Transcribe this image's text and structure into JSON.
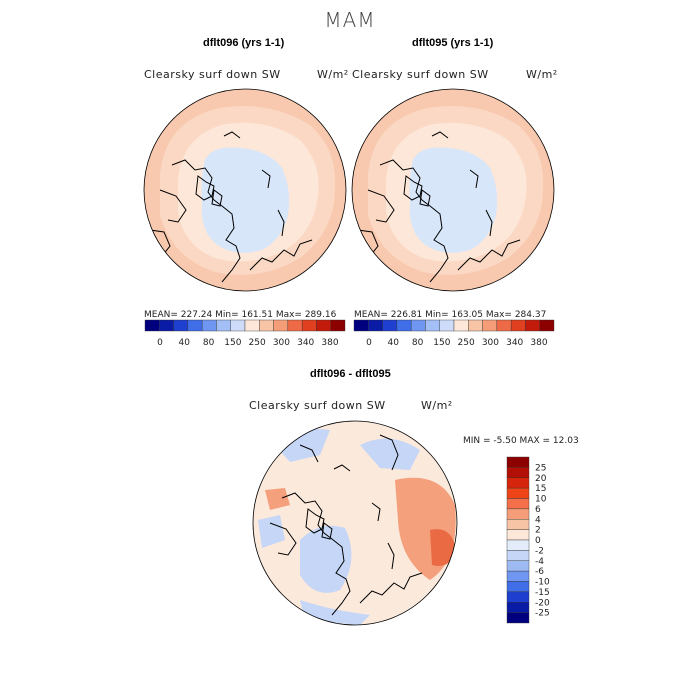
{
  "season": "MAM",
  "panels": [
    {
      "title": "dflt096 (yrs 1-1)",
      "field": "Clearsky surf down SW",
      "units": "W/m²",
      "stats": "MEAN= 227.24   Min= 161.51   Max= 289.16"
    },
    {
      "title": "dflt095 (yrs 1-1)",
      "field": "Clearsky surf down SW",
      "units": "W/m²",
      "stats": "MEAN= 226.81   Min= 163.05   Max= 284.37"
    }
  ],
  "diff": {
    "title": "dflt096 - dflt095",
    "field": "Clearsky surf down SW",
    "units": "W/m²",
    "stats": "MIN =   -5.50 MAX =   12.03"
  },
  "colorbar_top": {
    "labels": [
      "0",
      "40",
      "80",
      "150",
      "250",
      "300",
      "340",
      "380"
    ],
    "colors": [
      "#00007f",
      "#0a1ca6",
      "#1e3fd0",
      "#3f6ee8",
      "#6f97f2",
      "#a3bff6",
      "#cfdcf9",
      "#fde7d8",
      "#f7c4a6",
      "#f59d78",
      "#ee6a47",
      "#e0401f",
      "#c21b0c",
      "#8c0000"
    ]
  },
  "colorbar_diff": {
    "labels": [
      "25",
      "20",
      "15",
      "10",
      "6",
      "4",
      "2",
      "0",
      "-2",
      "-4",
      "-6",
      "-10",
      "-15",
      "-20",
      "-25"
    ],
    "colors": [
      "#8c0000",
      "#b30f05",
      "#d6250d",
      "#ef4418",
      "#f4704a",
      "#f59d78",
      "#f7c4a6",
      "#fde7d8",
      "#e4ecfa",
      "#c5d6f7",
      "#9dbaf3",
      "#6f97f2",
      "#3f6ee8",
      "#1e3fd0",
      "#0a1ca6",
      "#00007f"
    ]
  },
  "map_colors": {
    "outer": "#f8c9ae",
    "mid": "#fbd8c4",
    "inner": "#fde7d8",
    "polar": "#d8e6fa",
    "diff_base": "#fbe9dc",
    "diff_blue": "#c5d6f7",
    "diff_red": "#f4a07c",
    "diff_dark_red": "#ea6a44"
  }
}
